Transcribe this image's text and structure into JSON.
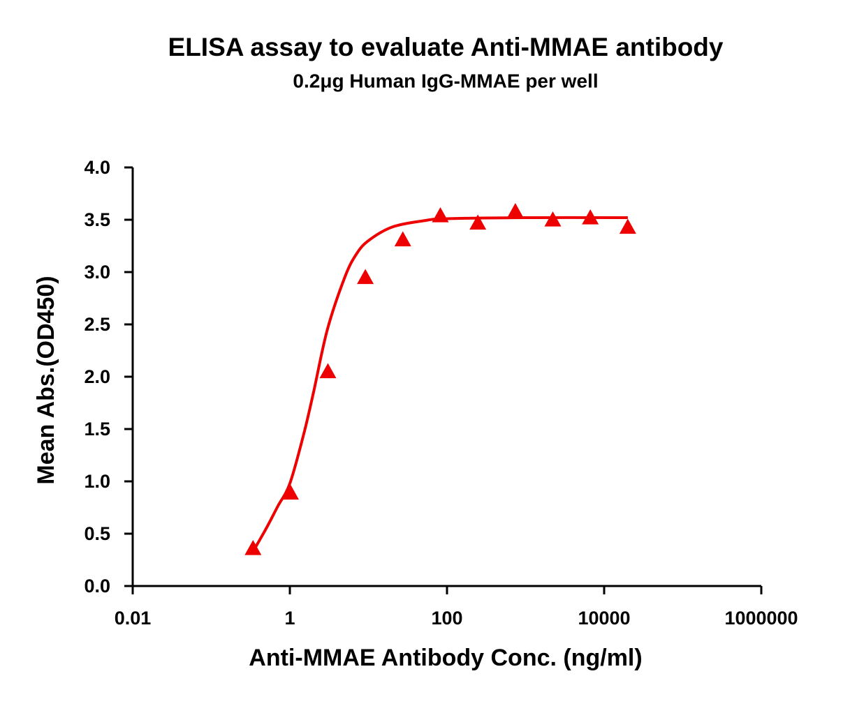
{
  "chart_data": {
    "type": "scatter",
    "title": "ELISA assay to evaluate Anti-MMAE antibody",
    "subtitle": "0.2μg Human IgG-MMAE per well",
    "x_label": "Anti-MMAE Antibody Conc. (ng/ml)",
    "y_label": "Mean Abs.(OD450)",
    "x_scale": "log",
    "xlim": [
      0.01,
      1000000
    ],
    "xticks": [
      0.01,
      1,
      100,
      10000,
      1000000
    ],
    "ylim": [
      0,
      4
    ],
    "yticks": [
      {
        "value": 0,
        "label": "0.0"
      },
      0.5,
      {
        "value": 1,
        "label": "1.0"
      },
      1.5,
      {
        "value": 2,
        "label": "2.0"
      },
      2.5,
      {
        "value": 3,
        "label": "3.0"
      },
      3.5,
      {
        "value": 4,
        "label": "4.0"
      }
    ],
    "series": [
      {
        "kind": "points",
        "marker": "triangle",
        "color": "#ee0000",
        "x": [
          0.34,
          1.02,
          3.05,
          9.14,
          27.4,
          82.3,
          247,
          741,
          2222,
          6667,
          20000
        ],
        "values": [
          0.36,
          0.89,
          2.05,
          2.95,
          3.31,
          3.54,
          3.47,
          3.58,
          3.5,
          3.52,
          3.43
        ]
      },
      {
        "kind": "fit",
        "color": "#ee0000",
        "x": [
          0.34,
          0.5,
          0.7,
          1,
          1.5,
          2,
          3,
          5,
          7,
          10,
          20,
          50,
          100,
          1000,
          20000
        ],
        "values": [
          0.33,
          0.55,
          0.76,
          0.98,
          1.45,
          1.85,
          2.45,
          2.95,
          3.17,
          3.3,
          3.43,
          3.49,
          3.51,
          3.52,
          3.52
        ]
      }
    ]
  }
}
